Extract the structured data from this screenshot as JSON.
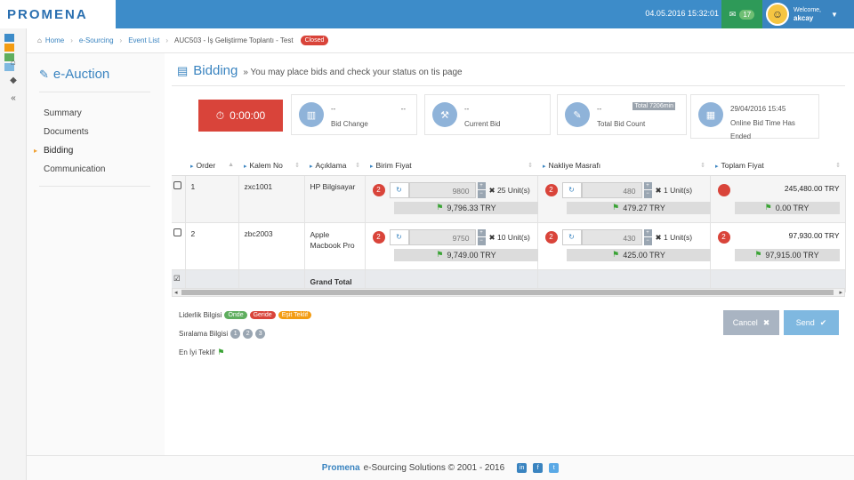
{
  "app": {
    "logo": "PROMENA"
  },
  "topbar": {
    "datetime": "04.05.2016 15:32:01",
    "mail_count": "17",
    "welcome": "Welcome,",
    "username": "akcay"
  },
  "breadcrumb": {
    "home": "Home",
    "e_sourcing": "e-Sourcing",
    "event_list": "Event List",
    "current": "AUC503 - İş Geliştirme Toplantı - Test",
    "status": "Closed"
  },
  "nav": {
    "title": "e-Auction",
    "items": [
      "Summary",
      "Documents",
      "Bidding",
      "Communication"
    ]
  },
  "page": {
    "title": "Bidding",
    "subtitle": "» You may place bids and check your status on tis page"
  },
  "timer": {
    "value": "0:00:00"
  },
  "cards": [
    {
      "v1": "--",
      "v2": "--",
      "label": "Bid Change",
      "icon": "bar-chart-icon"
    },
    {
      "v1": "--",
      "label": "Current Bid",
      "icon": "gavel-icon"
    },
    {
      "v1": "--",
      "tag": "Total 7206min",
      "label": "Total Bid Count",
      "icon": "edit-icon"
    },
    {
      "v1": "29/04/2016 15:45",
      "label": "Online Bid Time Has",
      "label2": "Ended",
      "icon": "calendar-icon"
    }
  ],
  "table": {
    "headers": [
      "Order",
      "Kalem No",
      "Açıklama",
      "Birim Fiyat",
      "Nakliye Masrafı",
      "Toplam Fiyat"
    ],
    "rows": [
      {
        "order": "1",
        "kalem": "zxc1001",
        "aciklama": "HP Bilgisayar",
        "rank": "2",
        "price": "9800",
        "qty": "25 Unit(s)",
        "best_price": "9,796.33 TRY",
        "ship_rank": "2",
        "ship": "480",
        "ship_qty": "1 Unit(s)",
        "best_ship": "479.27 TRY",
        "total": "245,480.00 TRY",
        "best_total": "0.00 TRY"
      },
      {
        "order": "2",
        "kalem": "zbc2003",
        "aciklama": "Apple Macbook Pro",
        "rank": "2",
        "price": "9750",
        "qty": "10 Unit(s)",
        "best_price": "9,749.00 TRY",
        "ship_rank": "2",
        "ship": "430",
        "ship_qty": "1 Unit(s)",
        "best_ship": "425.00 TRY",
        "total_rank": "2",
        "total": "97,930.00 TRY",
        "best_total": "97,915.00 TRY"
      }
    ],
    "grand_total": "Grand Total"
  },
  "legend": {
    "lead_label": "Liderlik Bilgisi",
    "onde": "Önde",
    "geride": "Geride",
    "esit": "Eşit Teklif",
    "rank_label": "Sıralama Bilgisi",
    "r1": "1",
    "r2": "2",
    "r3": "3",
    "best_label": "En İyi Teklif"
  },
  "buttons": {
    "cancel": "Cancel",
    "send": "Send"
  },
  "footer": {
    "brand": "Promena",
    "text": "e-Sourcing Solutions © 2001 - 2016"
  },
  "colors": {
    "primary": "#3d8cc9",
    "danger": "#d9443a",
    "success": "#5fae5f",
    "warning": "#f39c12"
  }
}
